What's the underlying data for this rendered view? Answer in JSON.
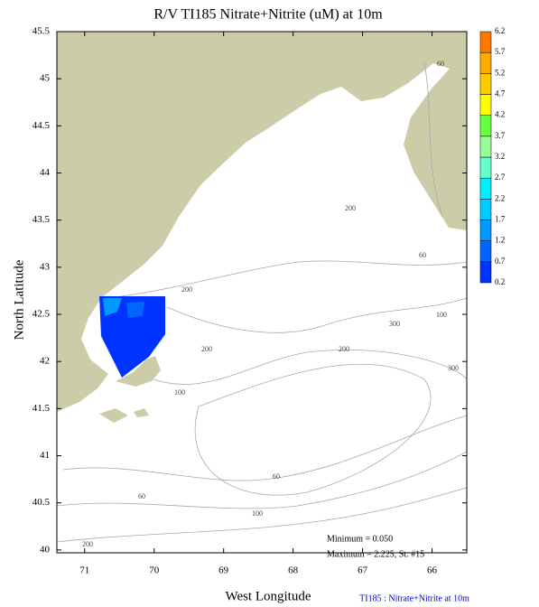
{
  "title": "R/V TI185 Nitrate+Nitrite (uM) at 10m",
  "x_label": "West Longitude",
  "y_label": "North Latitude",
  "xlim": [
    71.4,
    65.5
  ],
  "xticks": [
    71,
    70,
    69,
    68,
    67,
    66
  ],
  "ylim": [
    39.97,
    45.5
  ],
  "yticks": [
    40,
    40.5,
    41,
    41.5,
    42,
    42.5,
    43,
    43.5,
    44,
    44.5,
    45,
    45.5
  ],
  "colorbar": {
    "ticks": [
      0.2,
      0.7,
      1.2,
      1.7,
      2.2,
      2.7,
      3.2,
      3.7,
      4.2,
      4.7,
      5.2,
      5.7,
      6.2
    ],
    "colors": [
      "#0033ff",
      "#0066ff",
      "#0099ff",
      "#00ccff",
      "#00eeff",
      "#66ffcc",
      "#99ff99",
      "#66ff44",
      "#ffff00",
      "#ffcc00",
      "#ffaa00",
      "#ff7700",
      "#ff0000"
    ]
  },
  "contour_labels": [
    60,
    200,
    60,
    200,
    100,
    300,
    200,
    200,
    100,
    300,
    60,
    60,
    100,
    200
  ],
  "annotations": [
    "Minimum = 0.050",
    "Maximum = 2.225, St. #15"
  ],
  "footer": "TI185 : Nitrate+Nitrite at 10m"
}
